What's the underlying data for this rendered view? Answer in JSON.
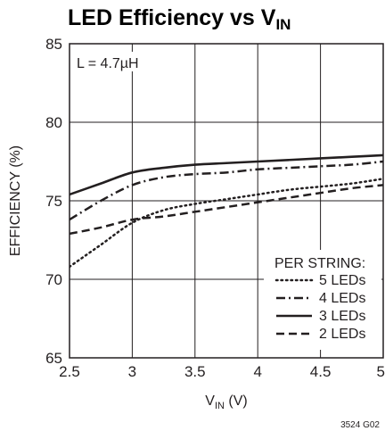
{
  "chart_data": {
    "type": "line",
    "title": "LED Efficiency vs V",
    "title_subscript": "IN",
    "xlabel": "V",
    "xlabel_subscript": "IN",
    "xlabel_suffix": " (V)",
    "ylabel": "EFFICIENCY (%)",
    "xlim": [
      2.5,
      5
    ],
    "ylim": [
      65,
      85
    ],
    "xticks": [
      2.5,
      3,
      3.5,
      4,
      4.5,
      5
    ],
    "xtick_labels": [
      "2.5",
      "3",
      "3.5",
      "4",
      "4.5",
      "5"
    ],
    "yticks": [
      65,
      70,
      75,
      80,
      85
    ],
    "ytick_labels": [
      "65",
      "70",
      "75",
      "80",
      "85"
    ],
    "grid": true,
    "annotation": "L = 4.7µH",
    "legend_title": "PER STRING:",
    "legend_position": "bottom-right",
    "figure_id": "3524 G02",
    "series": [
      {
        "name": "5 LEDs",
        "style": "dotted",
        "x": [
          2.5,
          2.75,
          3.0,
          3.25,
          3.5,
          3.75,
          4.0,
          4.25,
          4.5,
          4.75,
          5.0
        ],
        "y": [
          70.8,
          72.2,
          73.6,
          74.4,
          74.8,
          75.1,
          75.4,
          75.7,
          75.9,
          76.1,
          76.4
        ]
      },
      {
        "name": "4 LEDs",
        "style": "dashdot",
        "x": [
          2.5,
          2.75,
          3.0,
          3.25,
          3.5,
          3.75,
          4.0,
          4.25,
          4.5,
          4.75,
          5.0
        ],
        "y": [
          73.8,
          75.0,
          76.0,
          76.5,
          76.7,
          76.8,
          77.0,
          77.1,
          77.2,
          77.3,
          77.5
        ]
      },
      {
        "name": "3 LEDs",
        "style": "solid",
        "x": [
          2.5,
          2.75,
          3.0,
          3.25,
          3.5,
          3.75,
          4.0,
          4.25,
          4.5,
          4.75,
          5.0
        ],
        "y": [
          75.4,
          76.1,
          76.8,
          77.1,
          77.3,
          77.4,
          77.5,
          77.6,
          77.7,
          77.8,
          77.9
        ]
      },
      {
        "name": "2 LEDs",
        "style": "dashed",
        "x": [
          2.5,
          2.75,
          3.0,
          3.25,
          3.5,
          3.75,
          4.0,
          4.25,
          4.5,
          4.75,
          5.0
        ],
        "y": [
          72.9,
          73.3,
          73.8,
          74.0,
          74.3,
          74.6,
          74.9,
          75.2,
          75.5,
          75.8,
          76.0
        ]
      }
    ]
  }
}
